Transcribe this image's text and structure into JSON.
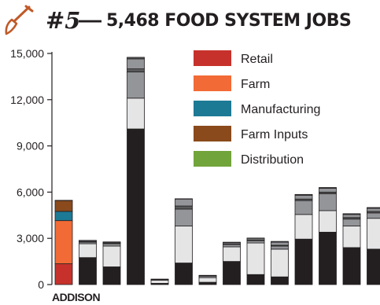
{
  "title": {
    "number": "#5",
    "dash": "—",
    "text": "5,468 FOOD SYSTEM JOBS"
  },
  "icons": {
    "title_icon": "shovel-icon"
  },
  "chart_data": {
    "type": "bar",
    "stacked": true,
    "ylim": [
      0,
      15000
    ],
    "yticks": [
      0,
      3000,
      6000,
      9000,
      12000,
      15000
    ],
    "ytick_labels": [
      "0",
      "3,000",
      "6,000",
      "9,000",
      "12,000",
      "15,000"
    ],
    "highlight_label": "ADDISON",
    "highlight_index": 0,
    "segments_order": [
      "Retail",
      "Farm",
      "Manufacturing",
      "Farm Inputs",
      "Distribution"
    ],
    "legend": [
      {
        "name": "Retail",
        "color": "#c6322b"
      },
      {
        "name": "Farm",
        "color": "#f26a35"
      },
      {
        "name": "Manufacturing",
        "color": "#1d7a95"
      },
      {
        "name": "Farm Inputs",
        "color": "#8a4a1c"
      },
      {
        "name": "Distribution",
        "color": "#72a43c"
      }
    ],
    "bars": [
      {
        "colors": [
          "#c6322b",
          "#f26a35",
          "#1d7a95",
          "#8a4a1c",
          "#72a43c"
        ],
        "values": [
          1350,
          2800,
          600,
          700,
          18
        ]
      },
      {
        "colors": [
          "#231f20",
          "#e5e5e6",
          "#939598",
          "#58595b",
          "#939598",
          "#58595b"
        ],
        "values": [
          1750,
          900,
          100,
          40,
          60,
          20
        ]
      },
      {
        "colors": [
          "#231f20",
          "#e5e5e6",
          "#939598",
          "#58595b",
          "#939598",
          "#58595b"
        ],
        "values": [
          1150,
          1350,
          150,
          50,
          50,
          20
        ]
      },
      {
        "colors": [
          "#231f20",
          "#e5e5e6",
          "#939598",
          "#58595b",
          "#939598",
          "#58595b"
        ],
        "values": [
          10100,
          2000,
          1700,
          200,
          650,
          100
        ]
      },
      {
        "colors": [
          "#231f20",
          "#e5e5e6",
          "#939598",
          "#58595b",
          "#939598",
          "#58595b"
        ],
        "values": [
          80,
          200,
          50,
          10,
          5,
          5
        ]
      },
      {
        "colors": [
          "#231f20",
          "#e5e5e6",
          "#939598",
          "#58595b",
          "#939598",
          "#58595b"
        ],
        "values": [
          1400,
          2400,
          1100,
          200,
          450,
          20
        ]
      },
      {
        "colors": [
          "#231f20",
          "#e5e5e6",
          "#939598",
          "#58595b",
          "#939598",
          "#58595b"
        ],
        "values": [
          150,
          300,
          100,
          20,
          20,
          10
        ]
      },
      {
        "colors": [
          "#231f20",
          "#e5e5e6",
          "#939598",
          "#58595b",
          "#939598",
          "#58595b"
        ],
        "values": [
          1500,
          950,
          150,
          50,
          80,
          20
        ]
      },
      {
        "colors": [
          "#231f20",
          "#e5e5e6",
          "#939598",
          "#58595b",
          "#939598",
          "#58595b"
        ],
        "values": [
          650,
          2050,
          150,
          50,
          100,
          20
        ]
      },
      {
        "colors": [
          "#231f20",
          "#e5e5e6",
          "#939598",
          "#58595b",
          "#939598",
          "#58595b"
        ],
        "values": [
          500,
          1800,
          200,
          50,
          200,
          50
        ]
      },
      {
        "colors": [
          "#231f20",
          "#e5e5e6",
          "#939598",
          "#58595b",
          "#939598",
          "#58595b"
        ],
        "values": [
          2950,
          1600,
          900,
          100,
          250,
          50
        ]
      },
      {
        "colors": [
          "#231f20",
          "#e5e5e6",
          "#939598",
          "#58595b",
          "#939598",
          "#58595b"
        ],
        "values": [
          3400,
          1400,
          1100,
          100,
          250,
          50
        ]
      },
      {
        "colors": [
          "#231f20",
          "#e5e5e6",
          "#939598",
          "#58595b",
          "#939598",
          "#58595b"
        ],
        "values": [
          2400,
          1400,
          450,
          100,
          200,
          50
        ]
      },
      {
        "colors": [
          "#231f20",
          "#e5e5e6",
          "#939598",
          "#58595b",
          "#939598",
          "#58595b"
        ],
        "values": [
          2300,
          2000,
          350,
          100,
          200,
          50
        ]
      }
    ]
  }
}
